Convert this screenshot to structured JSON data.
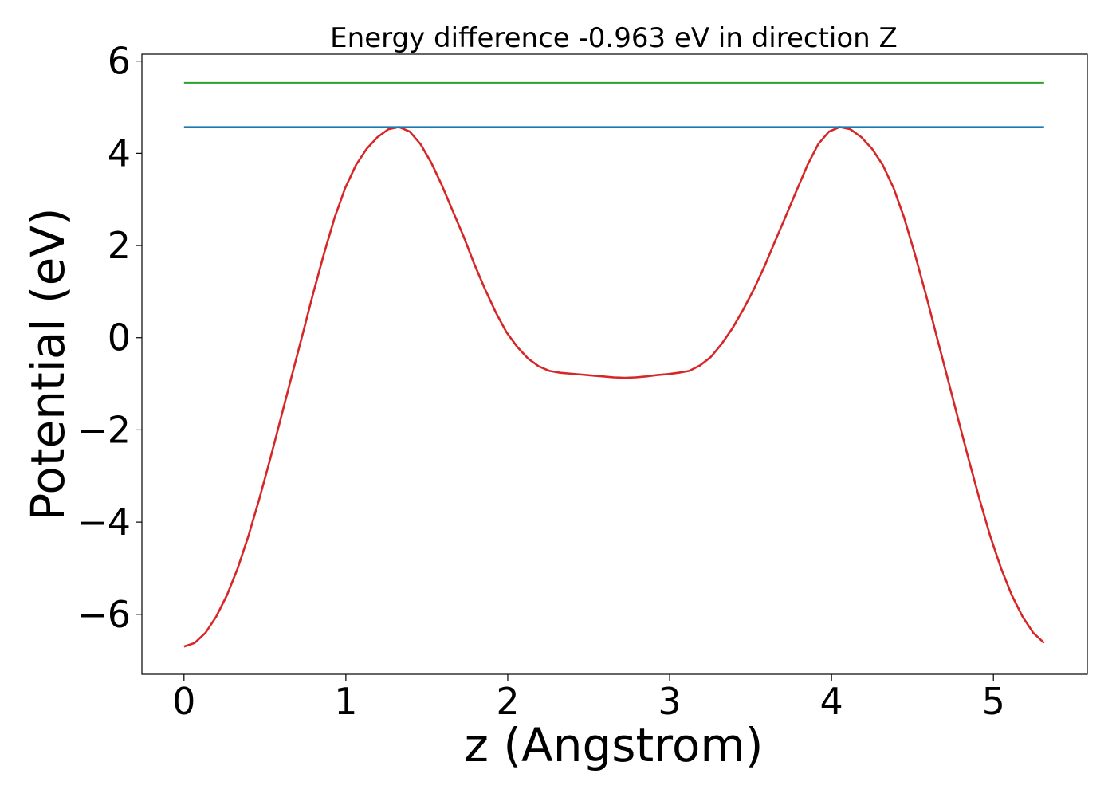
{
  "chart_data": {
    "type": "line",
    "title": "Energy difference -0.963 eV in direction Z",
    "xlabel": "z (Angstrom)",
    "ylabel": "Potential (eV)",
    "xlim": [
      -0.26,
      5.58
    ],
    "ylim": [
      -7.3,
      6.15
    ],
    "xticks": [
      0,
      1,
      2,
      3,
      4,
      5
    ],
    "xtick_labels": [
      "0",
      "1",
      "2",
      "3",
      "4",
      "5"
    ],
    "yticks": [
      -6,
      -4,
      -2,
      0,
      2,
      4,
      6
    ],
    "ytick_labels": [
      "−6",
      "−4",
      "−2",
      "0",
      "2",
      "4",
      "6"
    ],
    "grid": false,
    "legend": "none",
    "series": [
      {
        "color": "#d62728",
        "x": [
          0.0,
          0.066,
          0.133,
          0.199,
          0.266,
          0.332,
          0.398,
          0.465,
          0.531,
          0.598,
          0.664,
          0.731,
          0.797,
          0.863,
          0.93,
          0.996,
          1.063,
          1.129,
          1.195,
          1.262,
          1.328,
          1.395,
          1.461,
          1.527,
          1.594,
          1.66,
          1.727,
          1.793,
          1.86,
          1.926,
          1.992,
          2.059,
          2.125,
          2.191,
          2.258,
          2.324,
          2.391,
          2.457,
          2.523,
          2.59,
          2.656,
          2.723,
          2.789,
          2.855,
          2.922,
          2.988,
          3.055,
          3.121,
          3.188,
          3.254,
          3.32,
          3.387,
          3.453,
          3.52,
          3.586,
          3.652,
          3.719,
          3.785,
          3.852,
          3.918,
          3.984,
          4.051,
          4.117,
          4.184,
          4.25,
          4.316,
          4.383,
          4.449,
          4.516,
          4.582,
          4.648,
          4.715,
          4.781,
          4.848,
          4.914,
          4.98,
          5.047,
          5.113,
          5.18,
          5.246,
          5.313
        ],
        "y": [
          -6.7,
          -6.62,
          -6.4,
          -6.05,
          -5.58,
          -5.0,
          -4.3,
          -3.5,
          -2.65,
          -1.75,
          -0.85,
          0.05,
          0.95,
          1.8,
          2.6,
          3.25,
          3.75,
          4.1,
          4.35,
          4.52,
          4.57,
          4.47,
          4.2,
          3.8,
          3.3,
          2.75,
          2.2,
          1.6,
          1.05,
          0.55,
          0.12,
          -0.2,
          -0.45,
          -0.62,
          -0.72,
          -0.76,
          -0.78,
          -0.8,
          -0.82,
          -0.84,
          -0.86,
          -0.87,
          -0.86,
          -0.84,
          -0.81,
          -0.79,
          -0.76,
          -0.72,
          -0.6,
          -0.42,
          -0.14,
          0.2,
          0.6,
          1.05,
          1.55,
          2.1,
          2.65,
          3.2,
          3.75,
          4.2,
          4.47,
          4.57,
          4.52,
          4.35,
          4.1,
          3.75,
          3.25,
          2.6,
          1.8,
          0.95,
          0.05,
          -0.85,
          -1.75,
          -2.65,
          -3.5,
          -4.3,
          -5.0,
          -5.58,
          -6.05,
          -6.4,
          -6.62
        ]
      },
      {
        "color": "#1f77b4",
        "x": [
          0.0,
          5.313
        ],
        "y": [
          4.57,
          4.57
        ]
      },
      {
        "color": "#2ca02c",
        "x": [
          0.0,
          5.313
        ],
        "y": [
          5.53,
          5.53
        ]
      }
    ]
  }
}
